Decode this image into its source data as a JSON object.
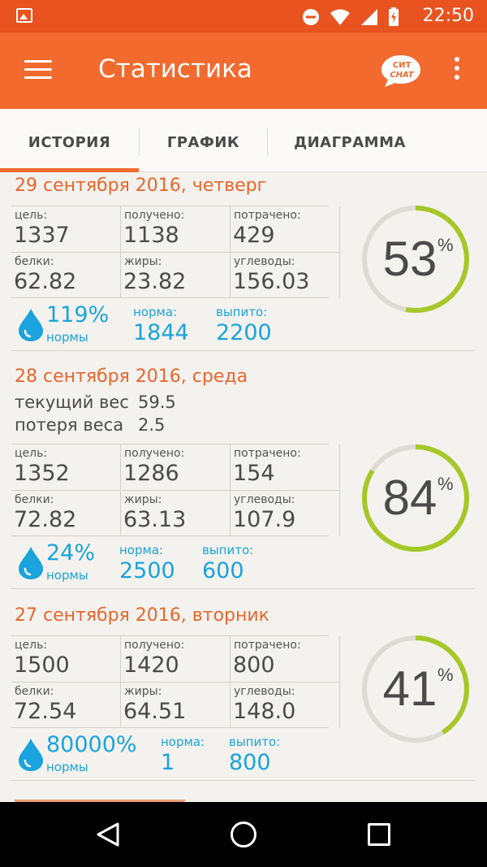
{
  "status_bar": {
    "time": "22:50"
  },
  "app_bar": {
    "title": "Статистика",
    "chat_badge_line1": "СИТ",
    "chat_badge_line2": "CHAT"
  },
  "tabs": [
    {
      "label": "ИСТОРИЯ",
      "active": true
    },
    {
      "label": "ГРАФИК",
      "active": false
    },
    {
      "label": "ДИАГРАММА",
      "active": false
    }
  ],
  "entries": [
    {
      "date": "29 сентября 2016, четверг",
      "stats": {
        "goal_label": "цель:",
        "goal": "1337",
        "received_label": "получено:",
        "received": "1138",
        "spent_label": "потрачено:",
        "spent": "429",
        "protein_label": "белки:",
        "protein": "62.82",
        "fat_label": "жиры:",
        "fat": "23.82",
        "carbs_label": "углеводы:",
        "carbs": "156.03"
      },
      "water": {
        "percent": "119%",
        "percent_label": "нормы",
        "norm_label": "норма:",
        "norm": "1844",
        "drunk_label": "выпито:",
        "drunk": "2200"
      },
      "ring": {
        "value": "53",
        "sign": "%",
        "fraction": 0.53
      }
    },
    {
      "date": "28 сентября 2016, среда",
      "weight": {
        "current_label": "текущий вес",
        "current": "59.5",
        "loss_label": "потеря веса",
        "loss": "2.5"
      },
      "stats": {
        "goal_label": "цель:",
        "goal": "1352",
        "received_label": "получено:",
        "received": "1286",
        "spent_label": "потрачено:",
        "spent": "154",
        "protein_label": "белки:",
        "protein": "72.82",
        "fat_label": "жиры:",
        "fat": "63.13",
        "carbs_label": "углеводы:",
        "carbs": "107.9"
      },
      "water": {
        "percent": "24%",
        "percent_label": "нормы",
        "norm_label": "норма:",
        "norm": "2500",
        "drunk_label": "выпито:",
        "drunk": "600"
      },
      "ring": {
        "value": "84",
        "sign": "%",
        "fraction": 0.84
      }
    },
    {
      "date": "27 сентября 2016, вторник",
      "stats": {
        "goal_label": "цель:",
        "goal": "1500",
        "received_label": "получено:",
        "received": "1420",
        "spent_label": "потрачено:",
        "spent": "800",
        "protein_label": "белки:",
        "protein": "72.54",
        "fat_label": "жиры:",
        "fat": "64.51",
        "carbs_label": "углеводы:",
        "carbs": "148.0"
      },
      "water": {
        "percent": "80000%",
        "percent_label": "нормы",
        "norm_label": "норма:",
        "norm": "1",
        "drunk_label": "выпито:",
        "drunk": "800"
      },
      "ring": {
        "value": "41",
        "sign": "%",
        "fraction": 0.41
      }
    }
  ],
  "colors": {
    "accent": "#f26a2e",
    "date": "#e8662d",
    "water": "#1aa3dc",
    "ring_progress": "#a5c828",
    "ring_track": "#dedbd6"
  }
}
